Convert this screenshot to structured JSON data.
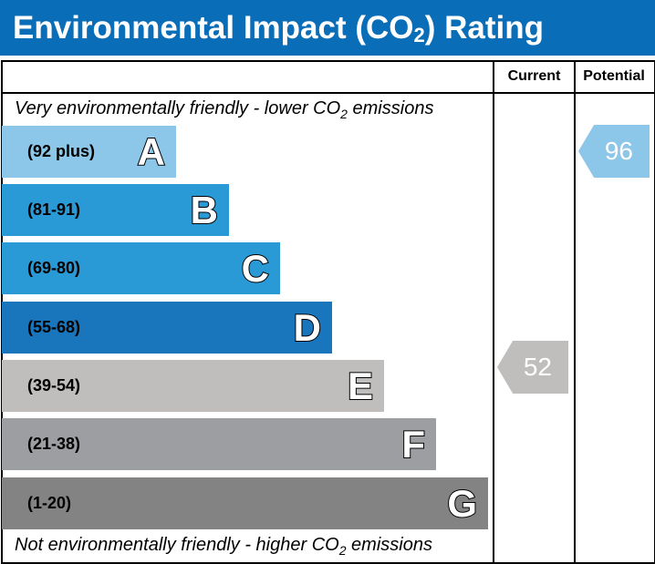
{
  "title": {
    "main": "Environmental Impact (CO",
    "sub": "2",
    "end": ") Rating"
  },
  "columns": {
    "current": "Current",
    "potential": "Potential"
  },
  "top_note": {
    "pre": "Very environmentally friendly - lower CO",
    "sub": "2",
    "post": " emissions"
  },
  "bottom_note": {
    "pre": "Not environmentally friendly - higher CO",
    "sub": "2",
    "post": " emissions"
  },
  "chart_data": {
    "type": "bar",
    "bands": [
      {
        "letter": "A",
        "range": "(92 plus)",
        "color": "#8cc6e8"
      },
      {
        "letter": "B",
        "range": "(81-91)",
        "color": "#2a9ad6"
      },
      {
        "letter": "C",
        "range": "(69-80)",
        "color": "#2a9ad6"
      },
      {
        "letter": "D",
        "range": "(55-68)",
        "color": "#1a76bc"
      },
      {
        "letter": "E",
        "range": "(39-54)",
        "color": "#bfbebc"
      },
      {
        "letter": "F",
        "range": "(21-38)",
        "color": "#9d9ea1"
      },
      {
        "letter": "G",
        "range": "(1-20)",
        "color": "#838383"
      }
    ],
    "current": {
      "value": "52",
      "band": "E",
      "color": "#bfbebc"
    },
    "potential": {
      "value": "96",
      "band": "A",
      "color": "#8cc6e8"
    }
  }
}
